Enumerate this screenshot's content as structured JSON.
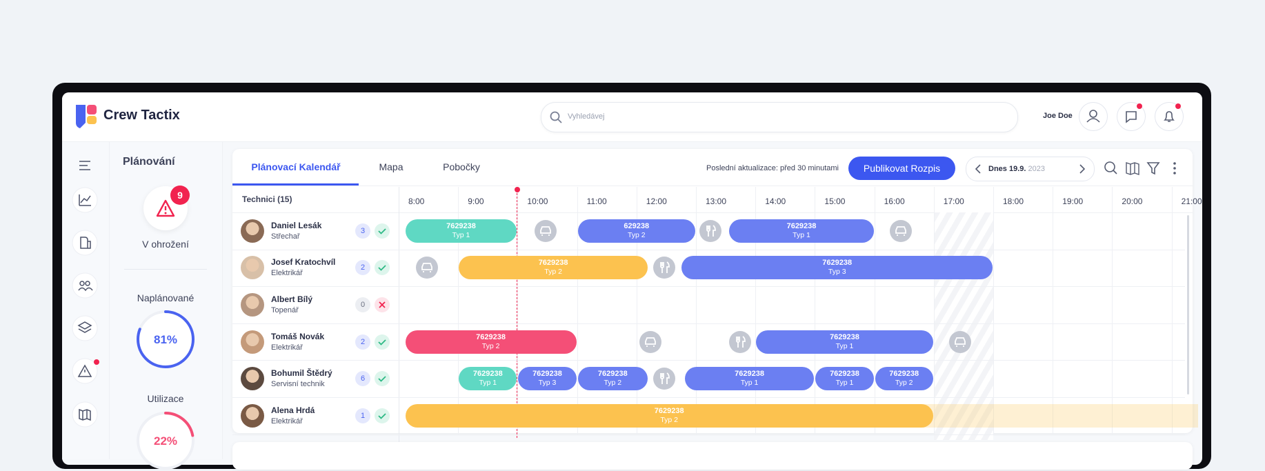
{
  "header": {
    "brand": "Crew Tactix",
    "search_placeholder": "Vyhledávej",
    "user": "Joe Doe"
  },
  "sidebar": {
    "title": "Plánování",
    "alerts": {
      "count": 9,
      "label": "V ohrožení"
    },
    "planned": {
      "label": "Naplánované",
      "value": 81,
      "value_label": "81%",
      "color": "#4a63f0"
    },
    "utilization": {
      "label": "Utilizace",
      "value": 22,
      "value_label": "22%",
      "color": "#f44f77"
    }
  },
  "tabs": [
    "Plánovací Kalendář",
    "Mapa",
    "Pobočky"
  ],
  "last_update": "Poslední aktualizace: před 30 minutami",
  "publish_button": "Publikovat Rozpis",
  "date": {
    "day": "Dnes 19.9.",
    "year": "2023"
  },
  "schedule": {
    "header": "Technici (15)",
    "hours": [
      {
        "value": 8,
        "label": "8:00"
      },
      {
        "value": 9,
        "label": "9:00"
      },
      {
        "value": 10,
        "label": "10:00"
      },
      {
        "value": 11,
        "label": "11:00"
      },
      {
        "value": 12,
        "label": "12:00"
      },
      {
        "value": 13,
        "label": "13:00"
      },
      {
        "value": 14,
        "label": "14:00"
      },
      {
        "value": 15,
        "label": "15:00"
      },
      {
        "value": 16,
        "label": "16:00"
      },
      {
        "value": 17,
        "label": "17:00"
      },
      {
        "value": 18,
        "label": "18:00"
      },
      {
        "value": 19,
        "label": "19:00"
      },
      {
        "value": 20,
        "label": "20:00"
      },
      {
        "value": 21,
        "label": "21:00"
      }
    ],
    "rows": [
      {
        "name": "Daniel Lesák",
        "role": "Střechař",
        "count": 3,
        "confirmed": true,
        "tasks": [
          {
            "id": "7629238",
            "type": "Typ 1",
            "start": 8.1,
            "end": 10.0,
            "color": "#5fd8c3"
          },
          {
            "id": "629238",
            "type": "Typ 2",
            "start": 11.0,
            "end": 13.0,
            "color": "#6b7ff2"
          },
          {
            "id": "7629238",
            "type": "Typ 1",
            "start": 13.55,
            "end": 16.0,
            "color": "#6b7ff2"
          }
        ]
      },
      {
        "name": "Josef Kratochvíl",
        "role": "Elektrikář",
        "count": 2,
        "confirmed": true,
        "tasks": [
          {
            "id": "7629238",
            "type": "Typ 2",
            "start": 9.0,
            "end": 12.2,
            "color": "#fcc24f"
          },
          {
            "id": "7629238",
            "type": "Typ 3",
            "start": 12.75,
            "end": 18.0,
            "color": "#6b7ff2"
          }
        ]
      },
      {
        "name": "Albert Bílý",
        "role": "Topenář",
        "count": 0,
        "confirmed": false,
        "tasks": []
      },
      {
        "name": "Tomáš Novák",
        "role": "Elektrikář",
        "count": 2,
        "confirmed": true,
        "tasks": [
          {
            "id": "7629238",
            "type": "Typ 2",
            "start": 8.1,
            "end": 11.0,
            "color": "#f44f77"
          },
          {
            "id": "7629238",
            "type": "Typ 1",
            "start": 14.0,
            "end": 17.0,
            "color": "#6b7ff2"
          }
        ]
      },
      {
        "name": "Bohumil Štědrý",
        "role": "Servisní technik",
        "count": 6,
        "confirmed": true,
        "tasks": [
          {
            "id": "7629238",
            "type": "Typ 1",
            "start": 9.0,
            "end": 10.0,
            "color": "#5fd8c3"
          },
          {
            "id": "7629238",
            "type": "Typ 3",
            "start": 10.0,
            "end": 11.0,
            "color": "#6b7ff2"
          },
          {
            "id": "7629238",
            "type": "Typ 2",
            "start": 11.0,
            "end": 12.2,
            "color": "#6b7ff2"
          },
          {
            "id": "7629238",
            "type": "Typ 1",
            "start": 12.8,
            "end": 15.0,
            "color": "#6b7ff2"
          },
          {
            "id": "7629238",
            "type": "Typ 1",
            "start": 15.0,
            "end": 16.0,
            "color": "#6b7ff2"
          },
          {
            "id": "7629238",
            "type": "Typ 2",
            "start": 16.0,
            "end": 17.0,
            "color": "#6b7ff2"
          }
        ]
      },
      {
        "name": "Alena Hrdá",
        "role": "Elektrikář",
        "count": 1,
        "confirmed": true,
        "tasks": [
          {
            "id": "7629238",
            "type": "Typ 2",
            "start": 8.1,
            "end": 17.0,
            "color": "#fcc24f"
          }
        ]
      }
    ]
  }
}
